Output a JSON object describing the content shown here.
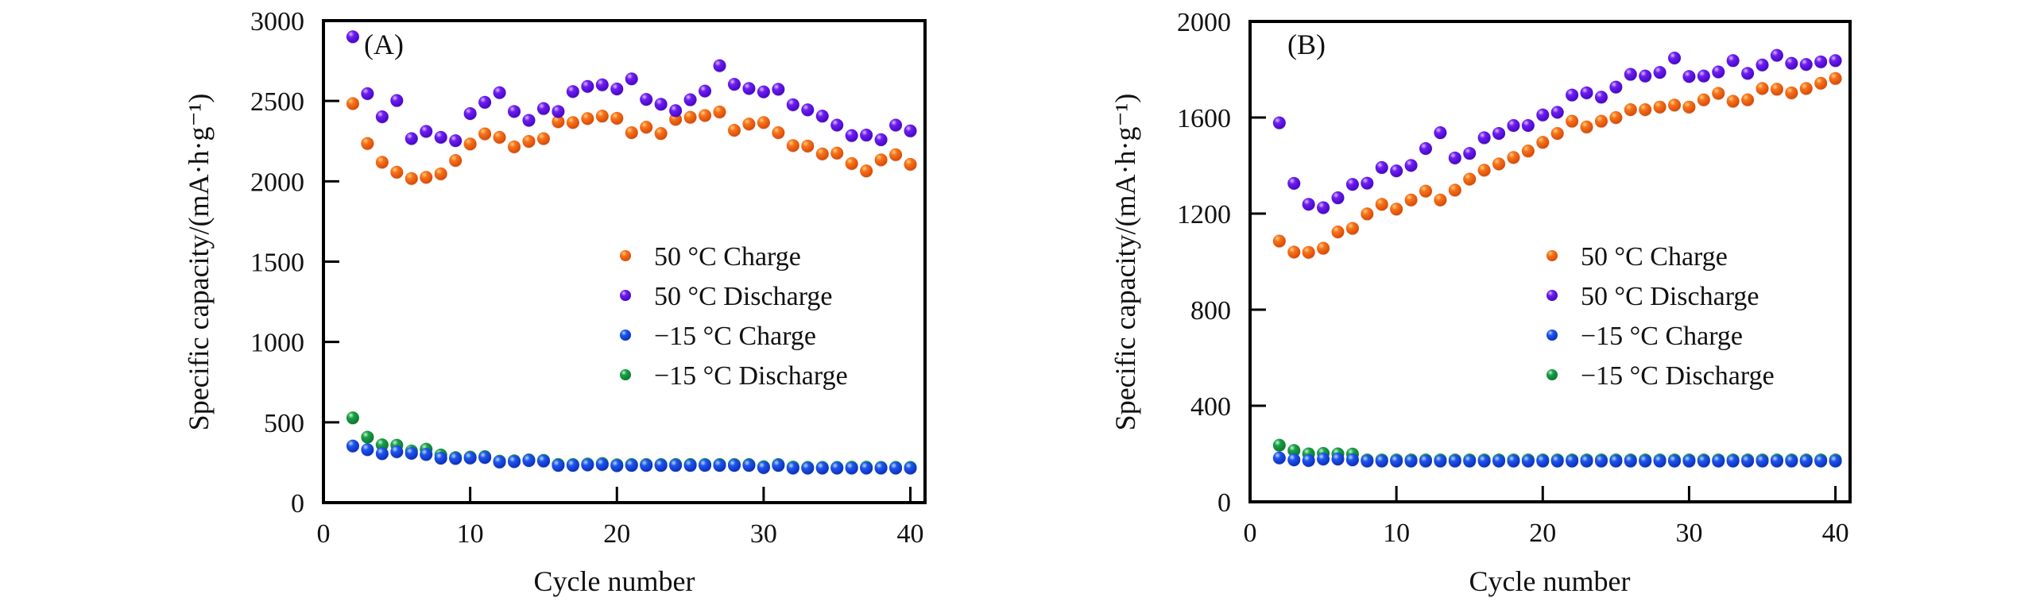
{
  "colors": {
    "charge_50": "#f25c12",
    "discharge_50": "#5b12e2",
    "charge_m15": "#1745dc",
    "discharge_m15": "#12923c",
    "axis": "#000000",
    "text": "#111111"
  },
  "chart_data": [
    {
      "type": "scatter",
      "panel_label": "(A)",
      "title": "",
      "xlabel": "Cycle number",
      "ylabel": "Specific capacity/(mA·h·g⁻¹)",
      "xlim": [
        0,
        41
      ],
      "ylim": [
        0,
        3000
      ],
      "xticks": [
        0,
        10,
        20,
        30,
        40
      ],
      "yticks": [
        0,
        500,
        1000,
        1500,
        2000,
        2500,
        3000
      ],
      "legend_position": "center-right",
      "grid": false,
      "x": [
        2,
        3,
        4,
        5,
        6,
        7,
        8,
        9,
        10,
        11,
        12,
        13,
        14,
        15,
        16,
        17,
        18,
        19,
        20,
        21,
        22,
        23,
        24,
        25,
        26,
        27,
        28,
        29,
        30,
        31,
        32,
        33,
        34,
        35,
        36,
        37,
        38,
        39,
        40
      ],
      "series": [
        {
          "name": "50 °C Charge",
          "color_key": "charge_50",
          "values": [
            2484,
            2236,
            2119,
            2057,
            2018,
            2025,
            2047,
            2130,
            2233,
            2296,
            2274,
            2215,
            2249,
            2266,
            2371,
            2366,
            2391,
            2406,
            2393,
            2303,
            2337,
            2298,
            2386,
            2399,
            2410,
            2432,
            2318,
            2357,
            2366,
            2303,
            2223,
            2220,
            2171,
            2176,
            2111,
            2065,
            2134,
            2166,
            2106
          ]
        },
        {
          "name": "50 °C Discharge",
          "color_key": "discharge_50",
          "values": [
            2900,
            2546,
            2402,
            2503,
            2266,
            2311,
            2274,
            2253,
            2422,
            2492,
            2552,
            2435,
            2380,
            2453,
            2435,
            2559,
            2591,
            2601,
            2575,
            2638,
            2510,
            2480,
            2440,
            2508,
            2562,
            2720,
            2604,
            2578,
            2557,
            2573,
            2477,
            2445,
            2406,
            2350,
            2285,
            2288,
            2259,
            2350,
            2314
          ]
        },
        {
          "name": "−15 °C Charge",
          "color_key": "charge_m15",
          "values": [
            353,
            330,
            305,
            317,
            307,
            300,
            277,
            275,
            278,
            281,
            253,
            255,
            262,
            259,
            232,
            232,
            235,
            238,
            230,
            232,
            232,
            232,
            232,
            232,
            232,
            232,
            232,
            232,
            218,
            232,
            215,
            215,
            215,
            215,
            215,
            215,
            215,
            215,
            215
          ]
        },
        {
          "name": "−15 °C Discharge",
          "color_key": "discharge_m15",
          "values": [
            528,
            408,
            360,
            358,
            322,
            333,
            297,
            281,
            284,
            287,
            259,
            261,
            267,
            264,
            238,
            238,
            241,
            244,
            236,
            238,
            238,
            238,
            238,
            238,
            238,
            238,
            238,
            238,
            224,
            238,
            222,
            220,
            220,
            220,
            221,
            221,
            220,
            220,
            220
          ]
        }
      ]
    },
    {
      "type": "scatter",
      "panel_label": "(B)",
      "title": "",
      "xlabel": "Cycle number",
      "ylabel": "Specific capacity/(mA·h·g⁻¹)",
      "xlim": [
        0,
        41
      ],
      "ylim": [
        0,
        2000
      ],
      "xticks": [
        0,
        10,
        20,
        30,
        40
      ],
      "yticks": [
        0,
        400,
        800,
        1200,
        1600,
        2000
      ],
      "legend_position": "center-right",
      "grid": false,
      "x": [
        2,
        3,
        4,
        5,
        6,
        7,
        8,
        9,
        10,
        11,
        12,
        13,
        14,
        15,
        16,
        17,
        18,
        19,
        20,
        21,
        22,
        23,
        24,
        25,
        26,
        27,
        28,
        29,
        30,
        31,
        32,
        33,
        34,
        35,
        36,
        37,
        38,
        39,
        40
      ],
      "series": [
        {
          "name": "50 °C Charge",
          "color_key": "charge_50",
          "values": [
            1086,
            1040,
            1039,
            1056,
            1124,
            1139,
            1199,
            1239,
            1219,
            1257,
            1294,
            1257,
            1298,
            1344,
            1381,
            1407,
            1434,
            1461,
            1497,
            1534,
            1585,
            1561,
            1585,
            1600,
            1633,
            1633,
            1644,
            1652,
            1644,
            1674,
            1701,
            1668,
            1674,
            1721,
            1718,
            1703,
            1721,
            1743,
            1763
          ]
        },
        {
          "name": "50 °C Discharge",
          "color_key": "discharge_50",
          "values": [
            1578,
            1326,
            1239,
            1225,
            1266,
            1322,
            1327,
            1392,
            1378,
            1401,
            1471,
            1537,
            1432,
            1451,
            1516,
            1534,
            1567,
            1567,
            1611,
            1622,
            1694,
            1703,
            1685,
            1727,
            1780,
            1773,
            1788,
            1848,
            1771,
            1773,
            1790,
            1837,
            1784,
            1819,
            1859,
            1826,
            1821,
            1832,
            1837
          ]
        },
        {
          "name": "−15 °C Charge",
          "color_key": "charge_m15",
          "values": [
            183,
            175,
            172,
            178,
            178,
            175,
            170,
            170,
            170,
            170,
            170,
            170,
            170,
            170,
            170,
            170,
            170,
            170,
            170,
            170,
            170,
            170,
            170,
            170,
            170,
            170,
            170,
            170,
            170,
            170,
            170,
            170,
            170,
            170,
            170,
            170,
            170,
            170,
            170
          ]
        },
        {
          "name": "−15 °C Discharge",
          "color_key": "discharge_m15",
          "values": [
            236,
            214,
            200,
            202,
            200,
            199,
            175,
            175,
            175,
            175,
            175,
            175,
            175,
            175,
            175,
            175,
            175,
            175,
            175,
            175,
            175,
            175,
            175,
            175,
            175,
            175,
            175,
            175,
            175,
            175,
            175,
            175,
            175,
            175,
            175,
            175,
            175,
            175,
            175
          ]
        }
      ]
    }
  ]
}
